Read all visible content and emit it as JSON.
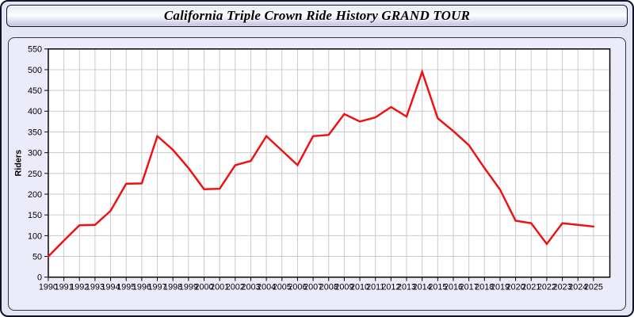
{
  "window": {
    "title": "California Triple Crown Ride History GRAND TOUR"
  },
  "chart_data": {
    "type": "line",
    "title": "California Triple Crown Ride History GRAND TOUR",
    "xlabel": "",
    "ylabel": "Riders",
    "categories": [
      "1990",
      "1991",
      "1992",
      "1993",
      "1994",
      "1995",
      "1996",
      "1997",
      "1998",
      "1999",
      "2000",
      "2001",
      "2002",
      "2003",
      "2004",
      "2005",
      "2006",
      "2007",
      "2008",
      "2009",
      "2010",
      "2011",
      "2012",
      "2013",
      "2014",
      "2015",
      "2016",
      "2017",
      "2018",
      "2019",
      "2020",
      "2021",
      "2022",
      "2023",
      "2024",
      "2025"
    ],
    "series": [
      {
        "name": "Riders",
        "values": [
          50,
          88,
          125,
          126,
          160,
          225,
          226,
          340,
          307,
          263,
          212,
          213,
          270,
          280,
          340,
          305,
          270,
          340,
          343,
          393,
          375,
          385,
          410,
          387,
          495,
          383,
          352,
          318,
          263,
          211,
          136,
          130,
          80,
          130,
          126,
          122
        ]
      }
    ],
    "ylim": [
      0,
      550
    ],
    "ytick_step": 50,
    "grid": true,
    "legend_position": "none"
  },
  "colors": {
    "line": "#ee1111",
    "plot_background": "#ffffff",
    "gridline": "#c9c9c9",
    "axis": "#000000",
    "panel_background": "#ecebf9",
    "page_background": "#e5e5f3"
  }
}
